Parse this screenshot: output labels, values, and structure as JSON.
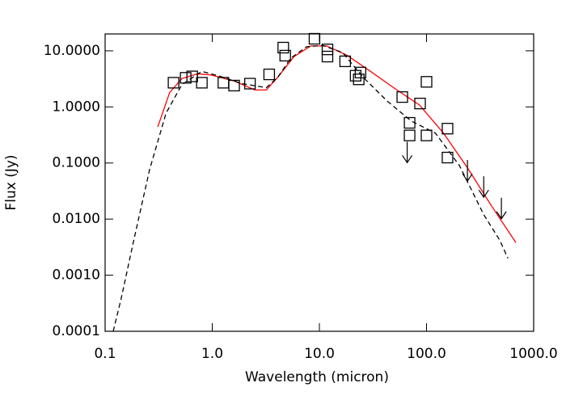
{
  "chart_data": {
    "type": "scatter",
    "x_label": "Wavelength (micron)",
    "y_label": "Flux (Jy)",
    "xscale": "log",
    "yscale": "log",
    "xlim": [
      0.1,
      1000
    ],
    "ylim": [
      0.0001,
      20
    ],
    "xticks": [
      0.1,
      {
        "value": 1,
        "label": "1.0"
      },
      {
        "value": 10,
        "label": "10.0"
      },
      {
        "value": 100,
        "label": "100.0"
      },
      {
        "value": 1000,
        "label": "1000.0"
      }
    ],
    "yticks": [
      {
        "value": 10,
        "label": "10.0000"
      },
      {
        "value": 1,
        "label": "1.0000"
      },
      {
        "value": 0.1,
        "label": "0.1000"
      },
      {
        "value": 0.01,
        "label": "0.0100"
      },
      {
        "value": 0.001,
        "label": "0.0010"
      },
      {
        "value": 0.0001,
        "label": "0.0001"
      }
    ],
    "detections": {
      "color": "#000000",
      "x": [
        0.435,
        0.565,
        0.65,
        0.8,
        1.27,
        1.6,
        2.25,
        3.4,
        4.6,
        4.8,
        9.0,
        11.9,
        11.9,
        17.4,
        21.8,
        23.3,
        24.2,
        59.4,
        69.5,
        69.5,
        87,
        100,
        100,
        157,
        157
      ],
      "y": [
        2.7,
        3.3,
        3.5,
        2.7,
        2.7,
        2.4,
        2.6,
        3.8,
        11.4,
        8.2,
        16.4,
        10.6,
        7.9,
        6.5,
        3.6,
        3.1,
        4.1,
        1.5,
        0.52,
        0.31,
        1.15,
        2.8,
        0.31,
        0.41,
        0.125
      ]
    },
    "upper_limits": {
      "color": "#000000",
      "x": [
        66,
        241,
        342,
        500
      ],
      "y": [
        0.24,
        0.113,
        0.058,
        0.024
      ]
    },
    "series": [
      {
        "color": "#ff0000",
        "dash": false,
        "x": [
          0.31,
          0.4,
          0.52,
          0.73,
          0.98,
          1.6,
          2.5,
          3.2,
          4.1,
          5.8,
          8.3,
          11.7,
          18,
          30,
          51,
          86,
          144,
          242,
          406,
          684
        ],
        "values": [
          0.44,
          1.8,
          3.2,
          3.9,
          3.7,
          2.9,
          2.0,
          2.0,
          3.4,
          7.9,
          12.2,
          12.2,
          8.4,
          4.3,
          2.1,
          1.08,
          0.34,
          0.081,
          0.017,
          0.0038
        ]
      },
      {
        "color": "#000000",
        "dash": true,
        "x": [
          0.119,
          0.141,
          0.183,
          0.26,
          0.37,
          0.52,
          0.8,
          1.13,
          1.9,
          3.2,
          4.1,
          5.4,
          7.6,
          10.7,
          16.5,
          25.5,
          43,
          72,
          121,
          203,
          342,
          483,
          575
        ],
        "values": [
          0.0001,
          0.00038,
          0.0038,
          0.076,
          0.77,
          2.5,
          4.3,
          3.6,
          2.6,
          2.2,
          3.4,
          7.4,
          11.8,
          12.5,
          9.3,
          3.4,
          1.27,
          0.56,
          0.34,
          0.09,
          0.012,
          0.0042,
          0.002
        ]
      }
    ]
  }
}
